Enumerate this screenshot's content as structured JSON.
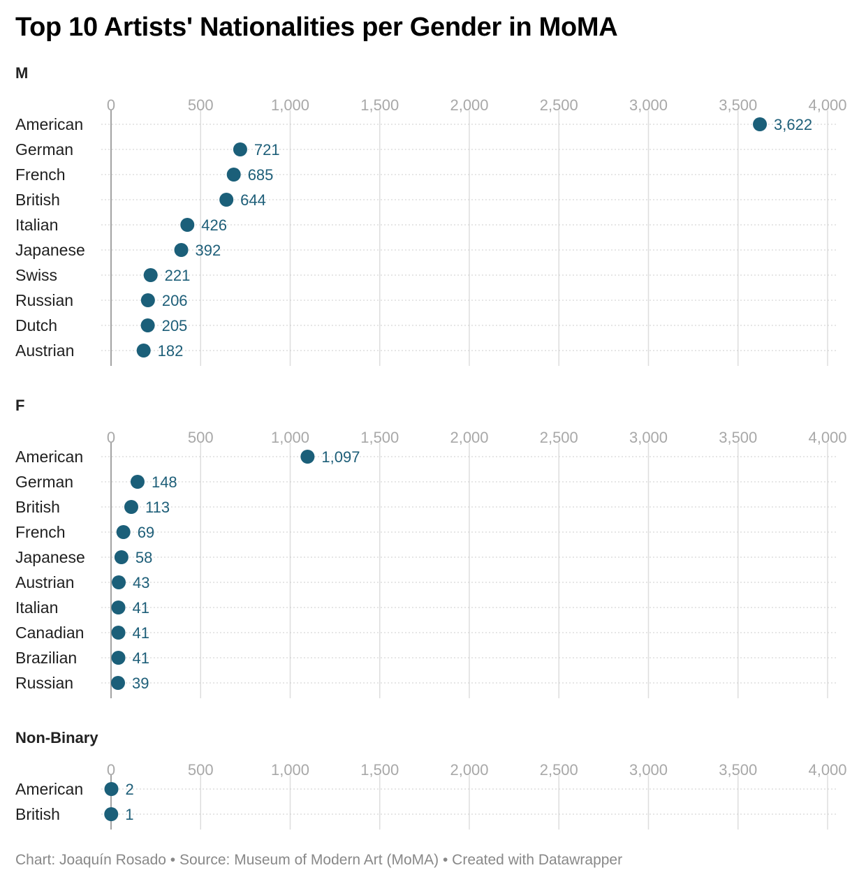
{
  "title": "Top 10 Artists' Nationalities per Gender in MoMA",
  "footer": {
    "credit": "Chart: Joaquín Rosado",
    "source": "Source: Museum of Modern Art (MoMA)",
    "tool": "Created with Datawrapper",
    "separator": " • "
  },
  "colors": {
    "dot": "#1b5f79",
    "value_text": "#1d5e78",
    "grid": "#dddddd",
    "zero_line": "#999999",
    "row_line": "#cccccc"
  },
  "chart_data": [
    {
      "type": "scatter",
      "title": "M",
      "xlim": [
        0,
        4000
      ],
      "x_ticks": [
        0,
        500,
        1000,
        1500,
        2000,
        2500,
        3000,
        3500,
        4000
      ],
      "x_tick_labels": [
        "0",
        "500",
        "1,000",
        "1,500",
        "2,000",
        "2,500",
        "3,000",
        "3,500",
        "4,000"
      ],
      "categories": [
        "American",
        "German",
        "French",
        "British",
        "Italian",
        "Japanese",
        "Swiss",
        "Russian",
        "Dutch",
        "Austrian"
      ],
      "values": [
        3622,
        721,
        685,
        644,
        426,
        392,
        221,
        206,
        205,
        182
      ],
      "value_labels": [
        "3,622",
        "721",
        "685",
        "644",
        "426",
        "392",
        "221",
        "206",
        "205",
        "182"
      ]
    },
    {
      "type": "scatter",
      "title": "F",
      "xlim": [
        0,
        4000
      ],
      "x_ticks": [
        0,
        500,
        1000,
        1500,
        2000,
        2500,
        3000,
        3500,
        4000
      ],
      "x_tick_labels": [
        "0",
        "500",
        "1,000",
        "1,500",
        "2,000",
        "2,500",
        "3,000",
        "3,500",
        "4,000"
      ],
      "categories": [
        "American",
        "German",
        "British",
        "French",
        "Japanese",
        "Austrian",
        "Italian",
        "Canadian",
        "Brazilian",
        "Russian"
      ],
      "values": [
        1097,
        148,
        113,
        69,
        58,
        43,
        41,
        41,
        41,
        39
      ],
      "value_labels": [
        "1,097",
        "148",
        "113",
        "69",
        "58",
        "43",
        "41",
        "41",
        "41",
        "39"
      ]
    },
    {
      "type": "scatter",
      "title": "Non-Binary",
      "xlim": [
        0,
        4000
      ],
      "x_ticks": [
        0,
        500,
        1000,
        1500,
        2000,
        2500,
        3000,
        3500,
        4000
      ],
      "x_tick_labels": [
        "0",
        "500",
        "1,000",
        "1,500",
        "2,000",
        "2,500",
        "3,000",
        "3,500",
        "4,000"
      ],
      "categories": [
        "American",
        "British"
      ],
      "values": [
        2,
        1
      ],
      "value_labels": [
        "2",
        "1"
      ]
    }
  ]
}
